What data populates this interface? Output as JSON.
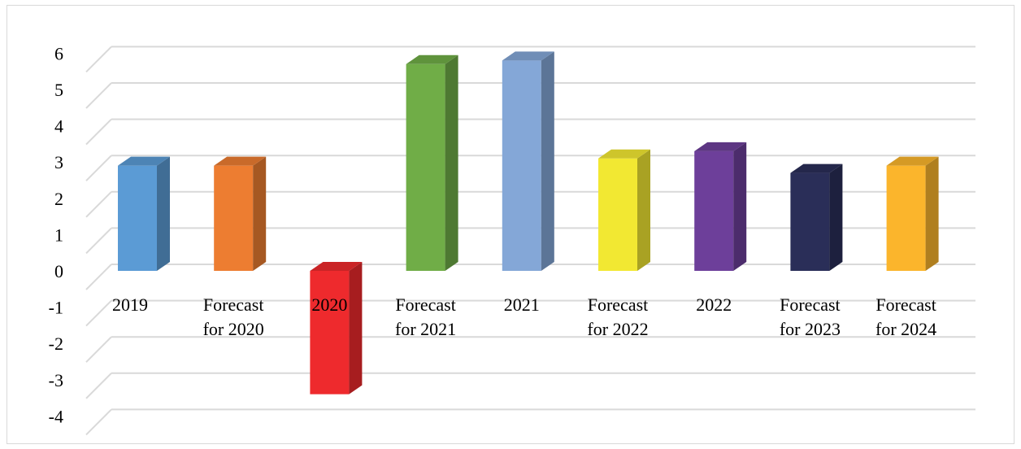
{
  "chart_data": {
    "type": "bar",
    "title": "",
    "xlabel": "",
    "ylabel": "",
    "ylim": [
      -4,
      6
    ],
    "yticks": [
      6,
      5,
      4,
      3,
      2,
      1,
      0,
      -1,
      -2,
      -3,
      -4
    ],
    "grid": true,
    "legend": "none",
    "categories": [
      [
        "2019"
      ],
      [
        "Forecast",
        "for 2020"
      ],
      [
        "2020"
      ],
      [
        "Forecast",
        "for 2021"
      ],
      [
        "2021"
      ],
      [
        "Forecast",
        "for 2022"
      ],
      [
        "2022"
      ],
      [
        "Forecast",
        "for 2023"
      ],
      [
        "Forecast",
        "for 2024"
      ]
    ],
    "values": [
      2.9,
      2.9,
      -3.4,
      5.7,
      5.8,
      3.1,
      3.3,
      2.7,
      2.9
    ],
    "colors": [
      "#5b9bd5",
      "#ed7d31",
      "#ee2a2d",
      "#70ad47",
      "#84a7d7",
      "#f2e832",
      "#6d3f9a",
      "#2a2e58",
      "#fbb52c"
    ]
  }
}
